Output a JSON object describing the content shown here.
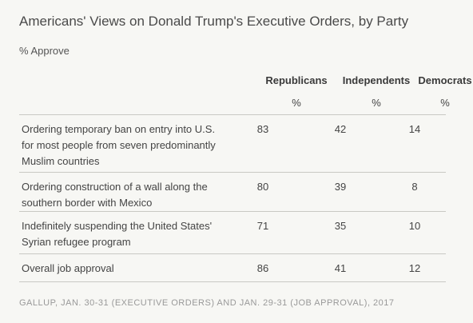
{
  "chart_data": {
    "type": "table",
    "title": "Americans' Views on Donald Trump's Executive Orders, by Party",
    "subtitle": "% Approve",
    "columns": [
      {
        "name": "Republicans",
        "unit": "%"
      },
      {
        "name": "Independents",
        "unit": "%"
      },
      {
        "name": "Democrats",
        "unit": "%"
      }
    ],
    "rows": [
      {
        "label": "Ordering temporary ban on entry into U.S. for most people from seven predominantly Muslim countries",
        "values": [
          83,
          42,
          14
        ]
      },
      {
        "label": "Ordering construction of a wall along the southern border with Mexico",
        "values": [
          80,
          39,
          8
        ]
      },
      {
        "label": "Indefinitely suspending the United States' Syrian refugee program",
        "values": [
          71,
          35,
          10
        ]
      },
      {
        "label": "Overall job approval",
        "values": [
          86,
          41,
          12
        ]
      }
    ],
    "source": "GALLUP, JAN. 30-31 (EXECUTIVE ORDERS) AND JAN. 29-31 (JOB APPROVAL), 2017"
  }
}
